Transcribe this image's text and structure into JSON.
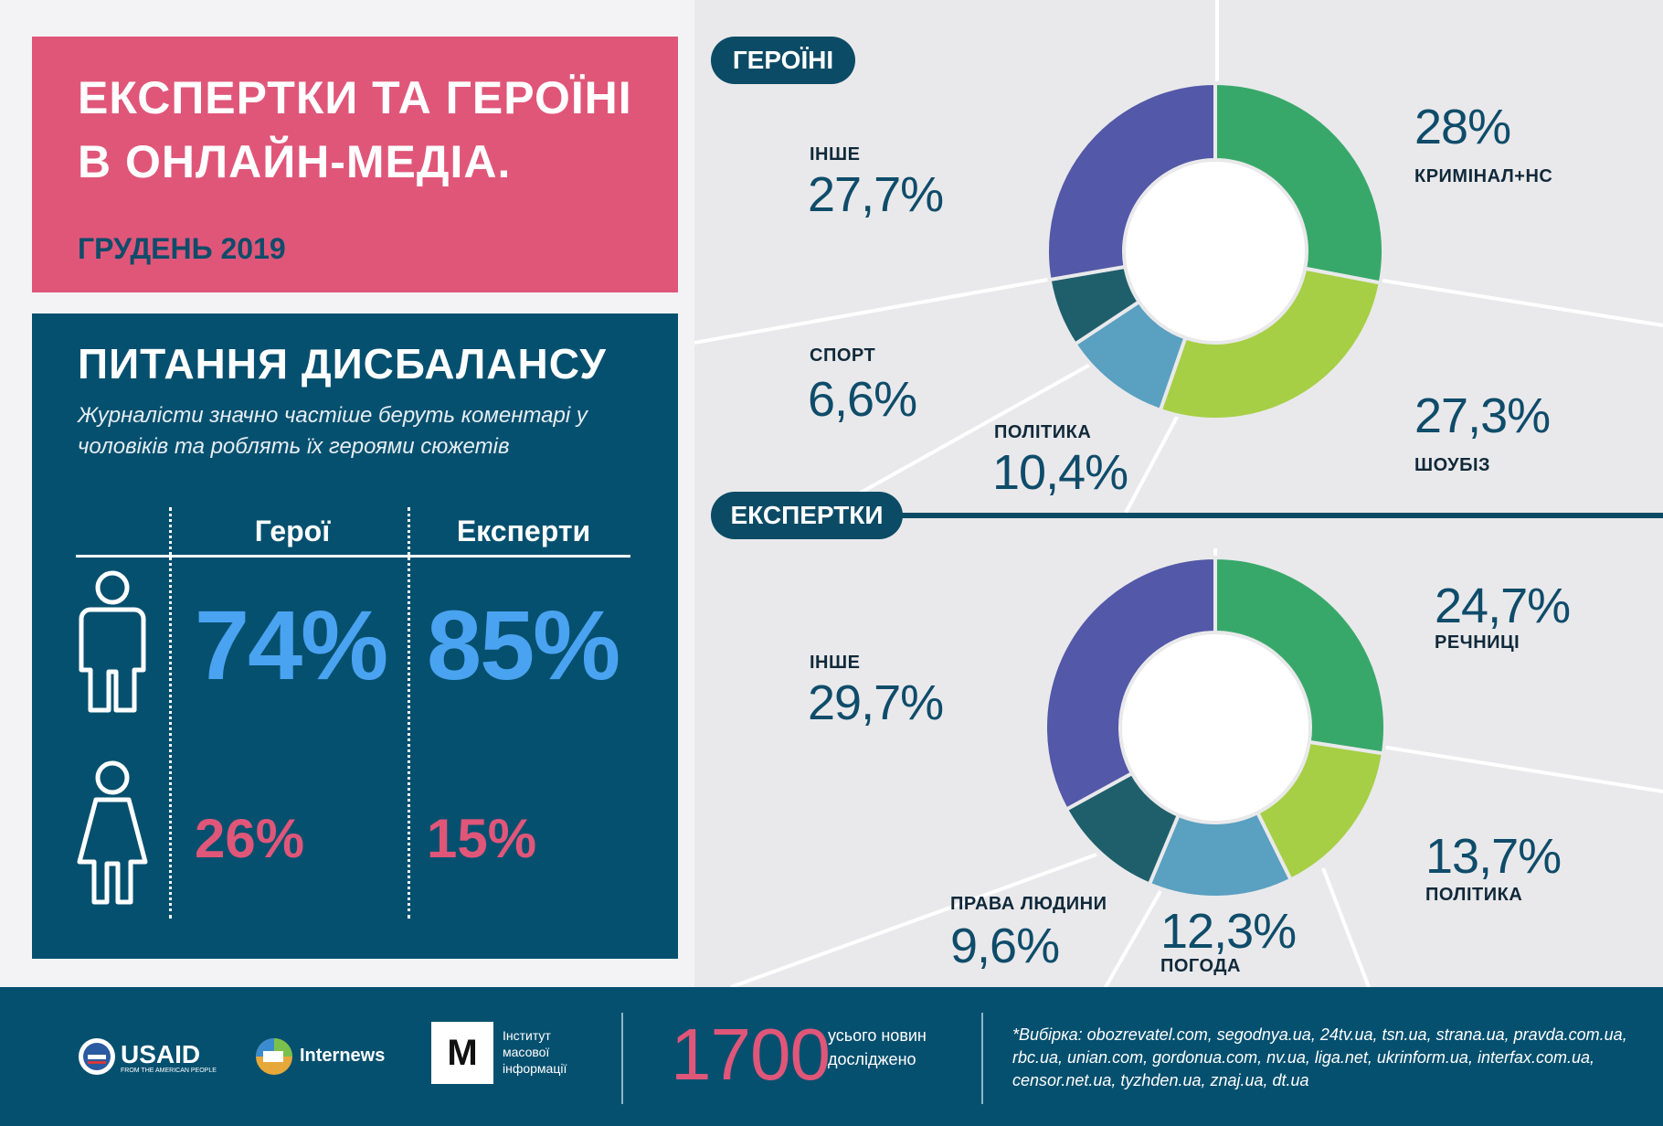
{
  "header": {
    "title_line1": "ЕКСПЕРТКИ ТА ГЕРОЇНІ",
    "title_line2": "В ОНЛАЙН-МЕДІА.",
    "subtitle": "ГРУДЕНЬ 2019"
  },
  "imbalance": {
    "title": "ПИТАННЯ ДИСБАЛАНСУ",
    "description": "Журналісти значно частіше беруть коментарі у чоловіків та роблять їх героями сюжетів",
    "col_heroes": "Герої",
    "col_experts": "Експерти",
    "men_heroes": "74%",
    "men_experts": "85%",
    "women_heroes": "26%",
    "women_experts": "15%"
  },
  "charts": {
    "heroines_label": "ГЕРОЇНІ",
    "experts_label": "ЕКСПЕРТКИ"
  },
  "chart_data": [
    {
      "type": "pie",
      "title": "ГЕРОЇНІ",
      "slices": [
        {
          "label": "КРИМІНАЛ+НС",
          "value": 28,
          "value_label": "28%",
          "color": "#38a86a"
        },
        {
          "label": "ШОУБІЗ",
          "value": 27.3,
          "value_label": "27,3%",
          "color": "#a6cf45"
        },
        {
          "label": "ПОЛІТИКА",
          "value": 10.4,
          "value_label": "10,4%",
          "color": "#5aa0c0"
        },
        {
          "label": "СПОРТ",
          "value": 6.6,
          "value_label": "6,6%",
          "color": "#1f5f6c"
        },
        {
          "label": "ІНШЕ",
          "value": 27.7,
          "value_label": "27,7%",
          "color": "#5358a8"
        }
      ]
    },
    {
      "type": "pie",
      "title": "ЕКСПЕРТКИ",
      "slices": [
        {
          "label": "РЕЧНИЦІ",
          "value": 24.7,
          "value_label": "24,7%",
          "color": "#38a86a"
        },
        {
          "label": "ПОЛІТИКА",
          "value": 13.7,
          "value_label": "13,7%",
          "color": "#a6cf45"
        },
        {
          "label": "ПОГОДА",
          "value": 12.3,
          "value_label": "12,3%",
          "color": "#5aa0c0"
        },
        {
          "label": "ПРАВА ЛЮДИНИ",
          "value": 9.6,
          "value_label": "9,6%",
          "color": "#1f5f6c"
        },
        {
          "label": "ІНШЕ",
          "value": 29.7,
          "value_label": "29,7%",
          "color": "#5358a8"
        }
      ]
    }
  ],
  "footer": {
    "usaid": "USAID",
    "usaid_sub": "FROM THE AMERICAN PEOPLE",
    "internews": "Internews",
    "imi_l1": "Інститут",
    "imi_l2": "масової",
    "imi_l3": "інформації",
    "imi_logo": "М",
    "count": "1700",
    "count_label": "усього новин досліджено",
    "sources": "*Вибірка: obozrevatel.com, segodnya.ua, 24tv.ua, tsn.ua, strana.ua, pravda.com.ua, rbc.ua, unian.com, gordonua.com, nv.ua, liga.net, ukrinform.ua, interfax.com.ua, censor.net.ua, tyzhden.ua, znaj.ua, dt.ua"
  }
}
